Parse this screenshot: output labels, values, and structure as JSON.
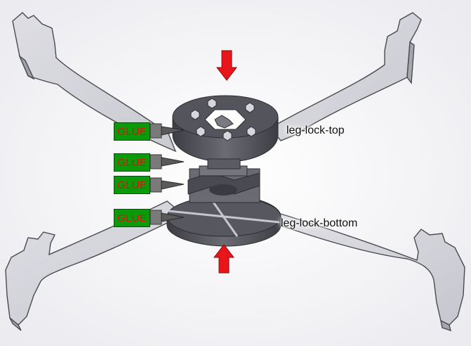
{
  "labels": {
    "glue_text": "GLUE",
    "leg_lock_top": "leg-lock-top",
    "leg_lock_bottom": "leg-lock-bottom"
  },
  "colors": {
    "glue_fill": "#0a9a0a",
    "glue_text": "#cc1b12",
    "arrow": "#e8161b",
    "part_face": "#c6c6cf",
    "part_dark": "#54545c",
    "background": "#f2f2f4"
  },
  "glue_tags": [
    {
      "text": "GLUE"
    },
    {
      "text": "GLUE"
    },
    {
      "text": "GLUE"
    },
    {
      "text": "GLUE"
    }
  ]
}
